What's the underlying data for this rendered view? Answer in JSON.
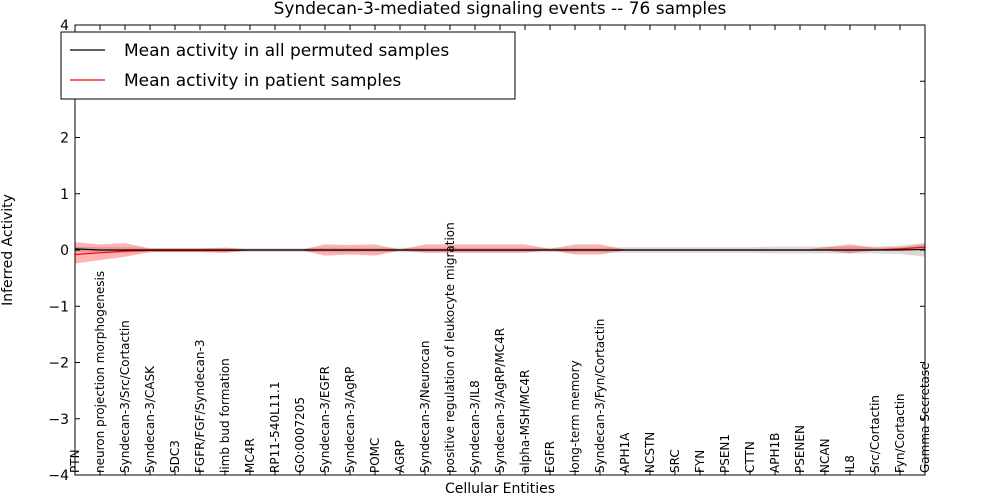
{
  "chart_data": {
    "type": "line",
    "title": "Syndecan-3-mediated signaling events -- 76 samples",
    "xlabel": "Cellular Entities",
    "ylabel": "Inferred Activity",
    "ylim": [
      -4,
      4
    ],
    "yticks": [
      -4,
      -3,
      -2,
      -1,
      0,
      1,
      2,
      3,
      4
    ],
    "ytick_labels": [
      "−4",
      "−3",
      "−2",
      "−1",
      "0",
      "1",
      "2",
      "3",
      "4"
    ],
    "categories": [
      "PTN",
      "neuron projection morphogenesis",
      "Syndecan-3/Src/Cortactin",
      "Syndecan-3/CASK",
      "SDC3",
      "FGFR/FGF/Syndecan-3",
      "limb bud formation",
      "MC4R",
      "RP11-540L11.1",
      "GO:0007205",
      "Syndecan-3/EGFR",
      "Syndecan-3/AgRP",
      "POMC",
      "AGRP",
      "Syndecan-3/Neurocan",
      "positive regulation of leukocyte migration",
      "Syndecan-3/IL8",
      "Syndecan-3/AgRP/MC4R",
      "alpha-MSH/MC4R",
      "EGFR",
      "long-term memory",
      "Syndecan-3/Fyn/Cortactin",
      "APH1A",
      "NCSTN",
      "SRC",
      "FYN",
      "PSEN1",
      "CTTN",
      "APH1B",
      "PSENEN",
      "NCAN",
      "IL8",
      "Src/Cortactin",
      "Fyn/Cortactin",
      "Gamma Secretase"
    ],
    "series": [
      {
        "name": "Mean activity in all permuted samples",
        "color": "#000000",
        "values": [
          0.02,
          0.0,
          0.0,
          0.0,
          0.0,
          0.0,
          0.0,
          0.0,
          0.0,
          0.0,
          0.0,
          0.0,
          0.0,
          0.0,
          0.0,
          0.0,
          0.0,
          0.0,
          0.0,
          0.0,
          0.0,
          0.0,
          0.0,
          0.0,
          0.0,
          0.0,
          0.0,
          0.0,
          0.0,
          0.0,
          0.0,
          0.0,
          0.0,
          0.0,
          0.01
        ],
        "lower": [
          -0.03,
          -0.05,
          -0.05,
          -0.03,
          -0.03,
          -0.03,
          -0.04,
          -0.03,
          -0.03,
          -0.03,
          -0.04,
          -0.04,
          -0.04,
          -0.04,
          -0.04,
          -0.04,
          -0.04,
          -0.04,
          -0.04,
          -0.04,
          -0.04,
          -0.04,
          -0.05,
          -0.05,
          -0.05,
          -0.05,
          -0.05,
          -0.05,
          -0.06,
          -0.06,
          -0.06,
          -0.06,
          -0.06,
          -0.07,
          -0.12
        ],
        "upper": [
          0.06,
          0.05,
          0.05,
          0.03,
          0.03,
          0.03,
          0.04,
          0.03,
          0.03,
          0.03,
          0.04,
          0.04,
          0.04,
          0.04,
          0.04,
          0.04,
          0.04,
          0.04,
          0.04,
          0.04,
          0.04,
          0.04,
          0.05,
          0.05,
          0.05,
          0.05,
          0.05,
          0.05,
          0.06,
          0.06,
          0.06,
          0.06,
          0.06,
          0.08,
          0.13
        ]
      },
      {
        "name": "Mean activity in patient samples",
        "color": "#ff0000",
        "values": [
          -0.08,
          -0.05,
          -0.02,
          -0.01,
          -0.01,
          -0.01,
          -0.01,
          0.0,
          0.0,
          0.0,
          0.0,
          0.0,
          0.0,
          0.0,
          0.0,
          0.0,
          0.0,
          0.0,
          0.0,
          0.0,
          0.0,
          0.0,
          0.0,
          0.0,
          0.0,
          0.0,
          0.0,
          0.0,
          0.0,
          0.0,
          0.0,
          0.0,
          0.0,
          0.02,
          0.05
        ],
        "lower": [
          -0.24,
          -0.18,
          -0.12,
          -0.04,
          -0.04,
          -0.04,
          -0.05,
          -0.01,
          0.0,
          0.0,
          -0.1,
          -0.08,
          -0.1,
          -0.01,
          -0.05,
          -0.05,
          -0.05,
          -0.05,
          -0.05,
          0.0,
          -0.08,
          -0.08,
          -0.01,
          0.0,
          0.0,
          0.0,
          0.0,
          0.0,
          0.0,
          0.0,
          -0.01,
          -0.06,
          0.0,
          -0.01,
          0.0
        ],
        "upper": [
          0.14,
          0.1,
          0.12,
          0.03,
          0.03,
          0.03,
          0.04,
          0.01,
          0.0,
          0.0,
          0.1,
          0.09,
          0.1,
          0.01,
          0.1,
          0.1,
          0.1,
          0.1,
          0.1,
          0.02,
          0.1,
          0.1,
          0.01,
          0.0,
          0.0,
          0.0,
          0.0,
          0.0,
          0.0,
          0.0,
          0.05,
          0.1,
          0.04,
          0.05,
          0.1
        ]
      }
    ],
    "legend_location": "upper-left",
    "grid": false
  }
}
